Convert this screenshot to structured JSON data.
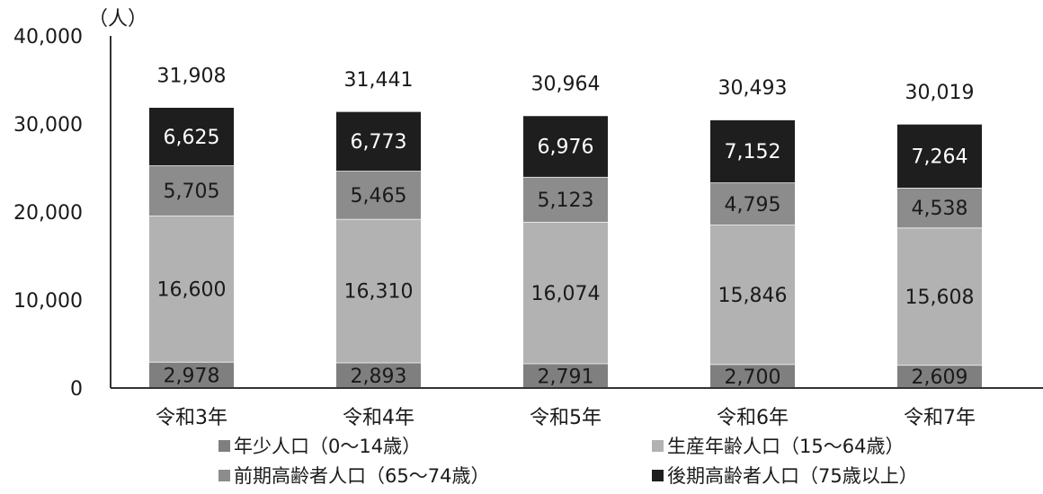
{
  "chart_data": {
    "type": "bar",
    "stacked": true,
    "unit_label": "（人）",
    "categories": [
      "令和3年",
      "令和4年",
      "令和5年",
      "令和6年",
      "令和7年"
    ],
    "series": [
      {
        "name": "年少人口（0～14歳）",
        "color": "#7f7f7f",
        "values": [
          2978,
          2893,
          2791,
          2700,
          2609
        ]
      },
      {
        "name": "生産年齢人口（15～64歳）",
        "color": "#b2b2b2",
        "values": [
          16600,
          16310,
          16074,
          15846,
          15608
        ]
      },
      {
        "name": "前期高齢者人口（65～74歳）",
        "color": "#8c8c8c",
        "values": [
          5705,
          5465,
          5123,
          4795,
          4538
        ]
      },
      {
        "name": "後期高齢者人口（75歳以上）",
        "color": "#1e1e1e",
        "values": [
          6625,
          6773,
          6976,
          7152,
          7264
        ]
      }
    ],
    "totals": [
      31908,
      31441,
      30964,
      30493,
      30019
    ],
    "ylim": [
      0,
      40000
    ],
    "yticks": [
      "0",
      "10,000",
      "20,000",
      "30,000",
      "40,000"
    ],
    "grid": false,
    "legend_position": "bottom"
  }
}
